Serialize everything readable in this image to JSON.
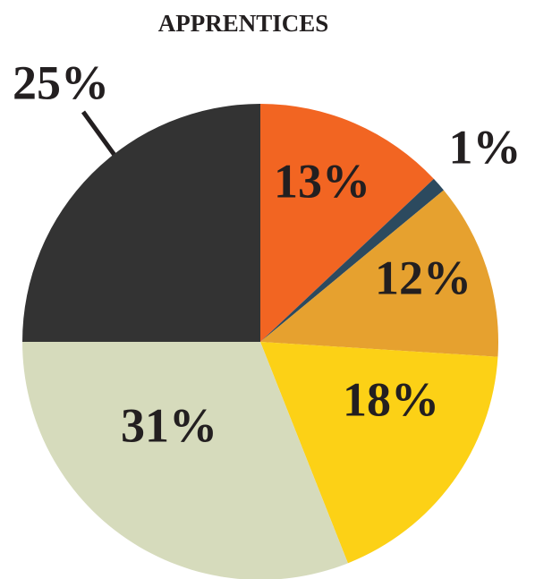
{
  "chart_data": {
    "type": "pie",
    "title": "APPRENTICES",
    "values": [
      13,
      1,
      12,
      18,
      31,
      25
    ],
    "value_labels": [
      "13%",
      "1%",
      "12%",
      "18%",
      "31%",
      "25%"
    ],
    "colors": [
      "#f26522",
      "#2c4a5f",
      "#e6a12f",
      "#fcd116",
      "#d6dbbc",
      "#333333"
    ]
  }
}
